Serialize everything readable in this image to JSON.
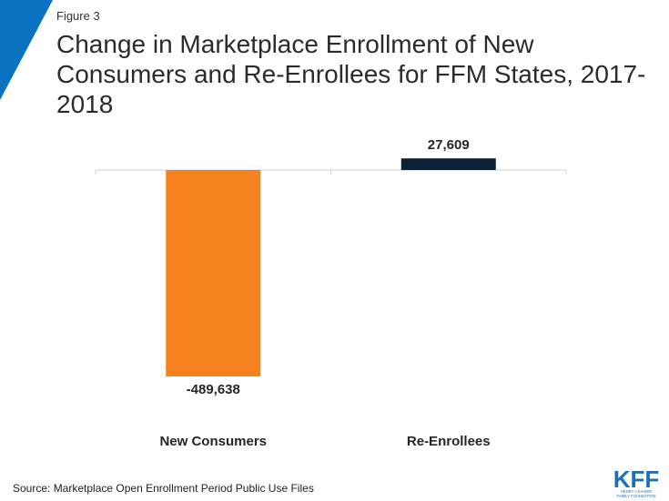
{
  "figure_label": "Figure 3",
  "title": "Change in Marketplace Enrollment of New Consumers and Re-Enrollees for FFM States, 2017-2018",
  "source": "Source: Marketplace Open Enrollment Period Public Use Files",
  "logo": {
    "text": "KFF",
    "subtext_line1": "HENRY J KAISER",
    "subtext_line2": "FAMILY FOUNDATION",
    "color": "#1f6fb5"
  },
  "colors": {
    "accent_corner": "#0a72c0",
    "new_consumers": "#f5821f",
    "re_enrollees": "#0c2236",
    "axis": "#d0d0d0"
  },
  "chart_data": {
    "type": "bar",
    "categories": [
      "New Consumers",
      "Re-Enrollees"
    ],
    "values": [
      -489638,
      27609
    ],
    "data_labels": [
      "-489,638",
      "27,609"
    ],
    "title": "",
    "xlabel": "",
    "ylabel": "",
    "grid": false,
    "legend": "none"
  }
}
